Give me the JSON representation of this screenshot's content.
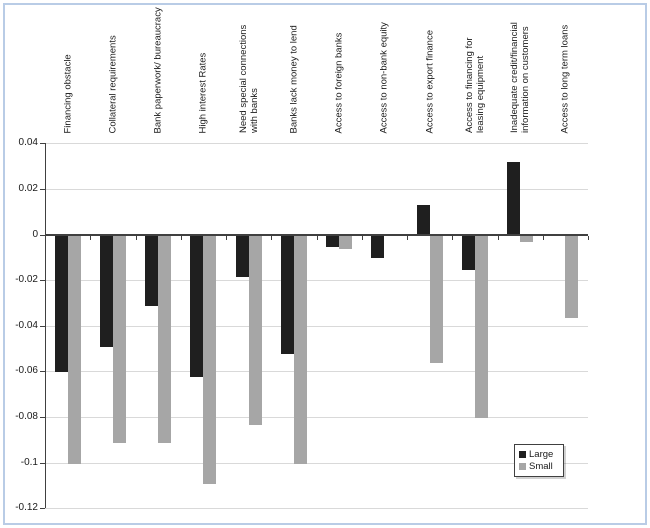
{
  "chart_data": {
    "type": "bar",
    "title": "",
    "xlabel": "",
    "ylabel": "",
    "categories": [
      {
        "label": "Financing obstacle",
        "lines": [
          "Financing obstacle"
        ]
      },
      {
        "label": "Collateral requirements",
        "lines": [
          "Collateral requirements"
        ]
      },
      {
        "label": "Bank paperwork/ bureaucracy",
        "lines": [
          "Bank paperwork/ bureaucracy"
        ]
      },
      {
        "label": "High interest Rates",
        "lines": [
          "High interest Rates"
        ]
      },
      {
        "label": "Need special connections with banks",
        "lines": [
          "Need special connections",
          "with banks"
        ]
      },
      {
        "label": "Banks lack money to lend",
        "lines": [
          "Banks lack money to lend"
        ]
      },
      {
        "label": "Access to foreign banks",
        "lines": [
          "Access to foreign banks"
        ]
      },
      {
        "label": "Access to non-bank equity",
        "lines": [
          "Access to non-bank equity"
        ]
      },
      {
        "label": "Access to export finance",
        "lines": [
          "Access to export finance"
        ]
      },
      {
        "label": "Access to financing for leasing equipment",
        "lines": [
          "Access to financing for",
          "leasing equipment"
        ]
      },
      {
        "label": "Inadequate credit/financial information on customers",
        "lines": [
          "Inadequate credit/financial",
          "information on customers"
        ]
      },
      {
        "label": "Access to long term loans",
        "lines": [
          "Access to long term loans"
        ]
      }
    ],
    "series": [
      {
        "name": "Large",
        "color": "#1f1f1f",
        "values": [
          -0.06,
          -0.049,
          -0.031,
          -0.062,
          -0.018,
          -0.052,
          -0.005,
          -0.01,
          0.013,
          -0.015,
          0.032,
          0.0
        ]
      },
      {
        "name": "Small",
        "color": "#a6a6a6",
        "values": [
          -0.1,
          -0.091,
          -0.091,
          -0.109,
          -0.083,
          -0.1,
          -0.006,
          0.0,
          -0.056,
          -0.08,
          -0.003,
          -0.036
        ]
      }
    ],
    "y_tick_labels": [
      "0.04",
      "0.02",
      "0",
      "-0.02",
      "-0.04",
      "-0.06",
      "-0.08",
      "-0.1",
      "-0.12"
    ],
    "y_tick_values": [
      0.04,
      0.02,
      0,
      -0.02,
      -0.04,
      -0.06,
      -0.08,
      -0.1,
      -0.12
    ],
    "ylim": [
      -0.12,
      0.04
    ],
    "grid": true,
    "legend_position": "inside-bottom-right"
  },
  "legend": {
    "items": [
      {
        "label": "Large",
        "color": "#1f1f1f"
      },
      {
        "label": "Small",
        "color": "#a6a6a6"
      }
    ]
  },
  "colors": {
    "frame": "#b9cce6",
    "gridline": "#d9d9d9",
    "axis": "#404040",
    "text": "#1a1a1a"
  }
}
